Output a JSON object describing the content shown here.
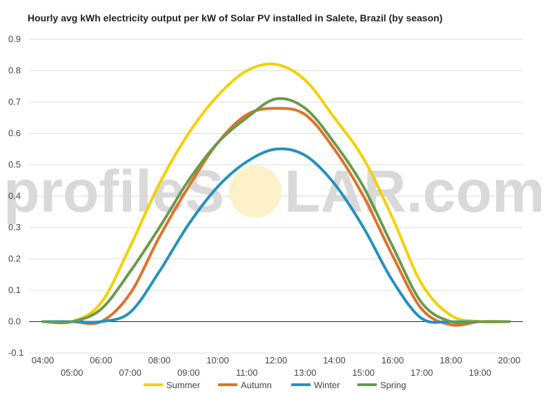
{
  "chart_data": {
    "type": "line",
    "title": "Hourly avg kWh electricity output per kW of Solar PV installed in Salete, Brazil (by season)",
    "xlabel": "",
    "ylabel": "",
    "categories": [
      "04:00",
      "05:00",
      "06:00",
      "07:00",
      "08:00",
      "09:00",
      "10:00",
      "11:00",
      "12:00",
      "13:00",
      "14:00",
      "15:00",
      "16:00",
      "17:00",
      "18:00",
      "19:00",
      "20:00"
    ],
    "ylim": [
      -0.1,
      0.9
    ],
    "yticks": [
      "-0.1",
      "0.0",
      "0.1",
      "0.2",
      "0.3",
      "0.4",
      "0.5",
      "0.6",
      "0.7",
      "0.8",
      "0.9"
    ],
    "grid": true,
    "legend_position": "bottom",
    "watermark": {
      "left": "profileS",
      "right": "LAR.com"
    },
    "series": [
      {
        "name": "Summer",
        "color": "#f5d000",
        "values": [
          0.0,
          0.0,
          0.06,
          0.24,
          0.44,
          0.6,
          0.72,
          0.8,
          0.82,
          0.77,
          0.65,
          0.52,
          0.33,
          0.12,
          0.02,
          0.0,
          0.0
        ]
      },
      {
        "name": "Autumn",
        "color": "#e07128",
        "values": [
          0.0,
          0.0,
          0.0,
          0.09,
          0.27,
          0.43,
          0.57,
          0.66,
          0.68,
          0.66,
          0.55,
          0.4,
          0.21,
          0.04,
          -0.01,
          0.0,
          0.0
        ]
      },
      {
        "name": "Winter",
        "color": "#2391c0",
        "values": [
          0.0,
          0.0,
          0.0,
          0.03,
          0.16,
          0.31,
          0.43,
          0.51,
          0.55,
          0.53,
          0.44,
          0.3,
          0.13,
          0.01,
          0.0,
          0.0,
          0.0
        ]
      },
      {
        "name": "Spring",
        "color": "#6a9a4e",
        "values": [
          0.0,
          0.0,
          0.04,
          0.16,
          0.3,
          0.45,
          0.57,
          0.65,
          0.71,
          0.68,
          0.57,
          0.43,
          0.24,
          0.06,
          0.0,
          0.0,
          0.0
        ]
      }
    ]
  }
}
